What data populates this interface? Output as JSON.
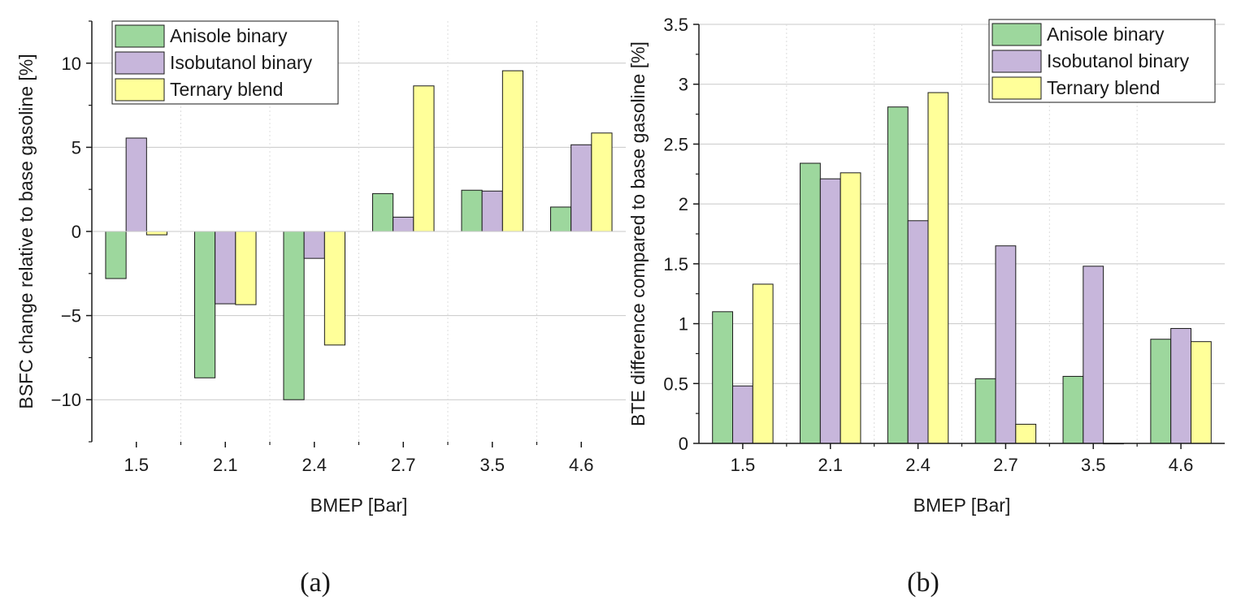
{
  "colors": {
    "Anisole binary": "#9dd79d",
    "Isobutanol binary": "#c7b6db",
    "Ternary blend": "#ffff99",
    "grid": "#c8c8c8",
    "axis": "#1a1a1a"
  },
  "chart_data": [
    {
      "type": "bar",
      "panel_label": "(a)",
      "categories": [
        "1.5",
        "2.1",
        "2.4",
        "2.7",
        "3.5",
        "4.6"
      ],
      "series": [
        {
          "name": "Anisole binary",
          "values": [
            -2.8,
            -8.7,
            -10.0,
            2.25,
            2.45,
            1.45
          ]
        },
        {
          "name": "Isobutanol binary",
          "values": [
            5.55,
            -4.3,
            -1.6,
            0.85,
            2.4,
            5.15
          ]
        },
        {
          "name": "Ternary blend",
          "values": [
            -0.2,
            -4.35,
            -6.75,
            8.65,
            9.55,
            5.85
          ]
        }
      ],
      "xlabel": "BMEP [Bar]",
      "ylabel": "BSFC change relative to base gasoline [%]",
      "ylim": [
        -12.5,
        12.5
      ],
      "yticks": [
        -10,
        -5,
        0,
        5,
        10
      ],
      "ytick_labels": [
        "−10",
        "−5",
        "0",
        "5",
        "10"
      ],
      "grid": true,
      "legend_position": "top-left"
    },
    {
      "type": "bar",
      "panel_label": "(b)",
      "categories": [
        "1.5",
        "2.1",
        "2.4",
        "2.7",
        "3.5",
        "4.6"
      ],
      "series": [
        {
          "name": "Anisole binary",
          "values": [
            1.1,
            2.34,
            2.81,
            0.54,
            0.56,
            0.87
          ]
        },
        {
          "name": "Isobutanol binary",
          "values": [
            0.48,
            2.21,
            1.86,
            1.65,
            1.48,
            0.96
          ]
        },
        {
          "name": "Ternary blend",
          "values": [
            1.33,
            2.26,
            2.93,
            0.16,
            0.0,
            0.85
          ]
        }
      ],
      "xlabel": "BMEP [Bar]",
      "ylabel": "BTE difference compared to base gasoline [%]",
      "ylim": [
        0,
        3.5
      ],
      "yticks": [
        0,
        0.5,
        1,
        1.5,
        2,
        2.5,
        3,
        3.5
      ],
      "ytick_labels": [
        "0",
        "0.5",
        "1",
        "1.5",
        "2",
        "2.5",
        "3",
        "3.5"
      ],
      "grid": true,
      "legend_position": "top-right"
    }
  ]
}
